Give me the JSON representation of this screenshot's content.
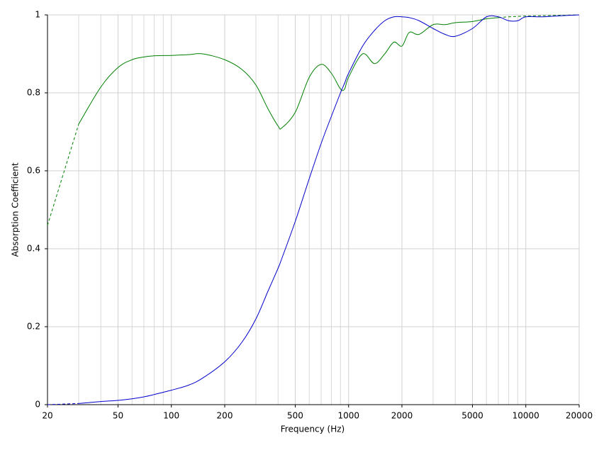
{
  "chart_data": {
    "type": "line",
    "x_label": "Frequency (Hz)",
    "y_label": "Absorption Coefficient",
    "x_log": true,
    "grid": true,
    "xlim": [
      20,
      20000
    ],
    "ylim": [
      0,
      1
    ],
    "xticks": [
      20,
      50,
      100,
      200,
      500,
      1000,
      2000,
      5000,
      10000,
      20000
    ],
    "x_minor_grid": [
      30,
      40,
      60,
      70,
      80,
      90,
      300,
      400,
      600,
      700,
      800,
      900,
      3000,
      4000,
      6000,
      7000,
      8000,
      9000
    ],
    "yticks": [
      0,
      0.2,
      0.4,
      0.6,
      0.8,
      1
    ],
    "x": [
      20,
      30,
      40,
      50,
      60,
      70,
      80,
      100,
      125,
      150,
      200,
      250,
      300,
      350,
      400,
      420,
      500,
      600,
      700,
      800,
      900,
      950,
      1000,
      1200,
      1400,
      1600,
      1800,
      2000,
      2200,
      2500,
      3000,
      3500,
      4000,
      5000,
      6000,
      7000,
      8000,
      9000,
      10000,
      12500,
      16000,
      20000
    ],
    "series": [
      {
        "color": "#008000",
        "line_style": "solid",
        "values": [
          null,
          0.72,
          0.815,
          0.865,
          0.885,
          0.892,
          0.895,
          0.896,
          0.898,
          0.9,
          0.885,
          0.86,
          0.82,
          0.76,
          0.715,
          0.71,
          0.75,
          0.84,
          0.873,
          0.85,
          0.81,
          0.81,
          0.84,
          0.9,
          0.875,
          0.9,
          0.93,
          0.92,
          0.955,
          0.95,
          0.975,
          0.975,
          0.98,
          0.983,
          0.99,
          0.993,
          null,
          null,
          null,
          null,
          null,
          null
        ]
      },
      {
        "color": "#008000",
        "line_style": "dashed",
        "values": [
          0.46,
          0.72,
          null,
          null,
          null,
          null,
          null,
          null,
          null,
          null,
          null,
          null,
          null,
          null,
          null,
          null,
          null,
          null,
          null,
          null,
          null,
          null,
          null,
          null,
          null,
          null,
          null,
          null,
          null,
          null,
          null,
          null,
          null,
          null,
          null,
          0.993,
          0.995,
          0.996,
          0.997,
          0.998,
          0.999,
          1
        ]
      },
      {
        "color": "#0000cc",
        "line_style": "solid",
        "values": [
          null,
          0.003,
          0.008,
          0.011,
          0.015,
          0.02,
          0.026,
          0.037,
          0.05,
          0.068,
          0.11,
          0.16,
          0.22,
          0.29,
          0.35,
          0.375,
          0.47,
          0.58,
          0.67,
          0.74,
          0.8,
          0.825,
          0.85,
          0.92,
          0.96,
          0.985,
          0.995,
          0.995,
          0.993,
          0.985,
          0.965,
          0.95,
          0.945,
          0.965,
          0.995,
          0.995,
          0.985,
          0.985,
          0.995,
          0.995,
          0.998,
          1
        ]
      },
      {
        "color": "#0000cc",
        "line_style": "dashed",
        "values": [
          0,
          0.003,
          null,
          null,
          null,
          null,
          null,
          null,
          null,
          null,
          null,
          null,
          null,
          null,
          null,
          null,
          null,
          null,
          null,
          null,
          null,
          null,
          null,
          null,
          null,
          null,
          null,
          null,
          null,
          null,
          null,
          null,
          null,
          null,
          null,
          null,
          null,
          null,
          null,
          null,
          null,
          null
        ]
      }
    ]
  }
}
